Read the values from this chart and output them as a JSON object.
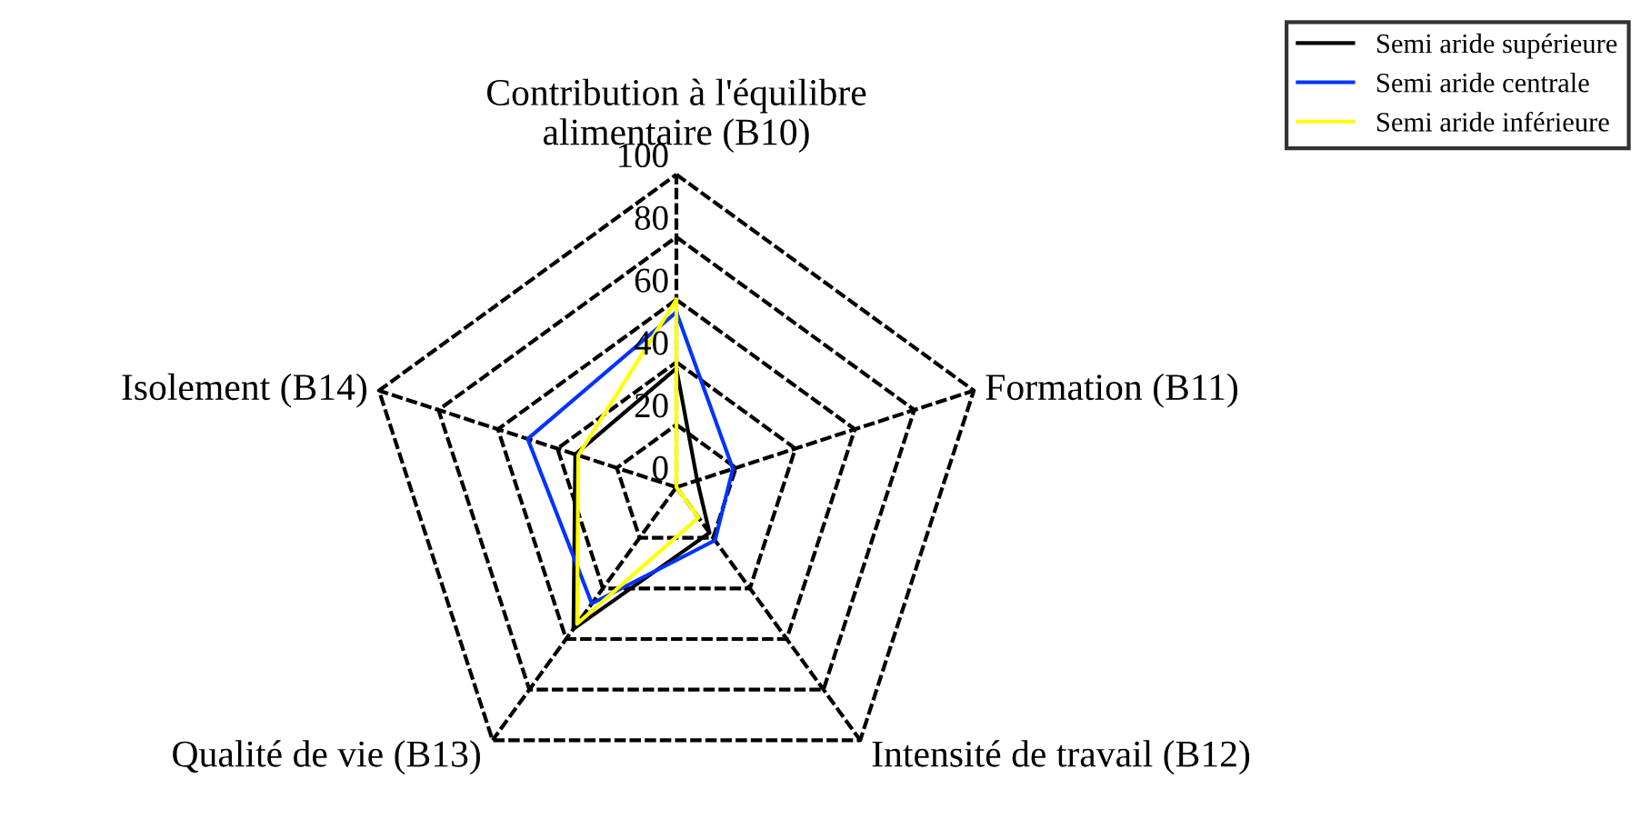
{
  "chart_data": {
    "type": "radar",
    "categories": [
      "Contribution à l'équilibre alimentaire (B10)",
      "Formation (B11)",
      "Intensité de travail (B12)",
      "Qualité de vie (B13)",
      "Isolement (B14)"
    ],
    "series": [
      {
        "name": "Semi aride supérieure",
        "color": "#000000",
        "values": [
          38,
          7,
          18,
          56,
          34
        ]
      },
      {
        "name": "Semi aride centrale",
        "color": "#0033ff",
        "values": [
          56,
          19,
          21,
          46,
          50
        ]
      },
      {
        "name": "Semi aride inférieure",
        "color": "#ffff00",
        "values": [
          60,
          0,
          12,
          54,
          33
        ]
      }
    ],
    "ylim": [
      0,
      100
    ],
    "yticks": [
      0,
      20,
      40,
      60,
      80,
      100
    ],
    "legend": "top right",
    "grid": true
  }
}
